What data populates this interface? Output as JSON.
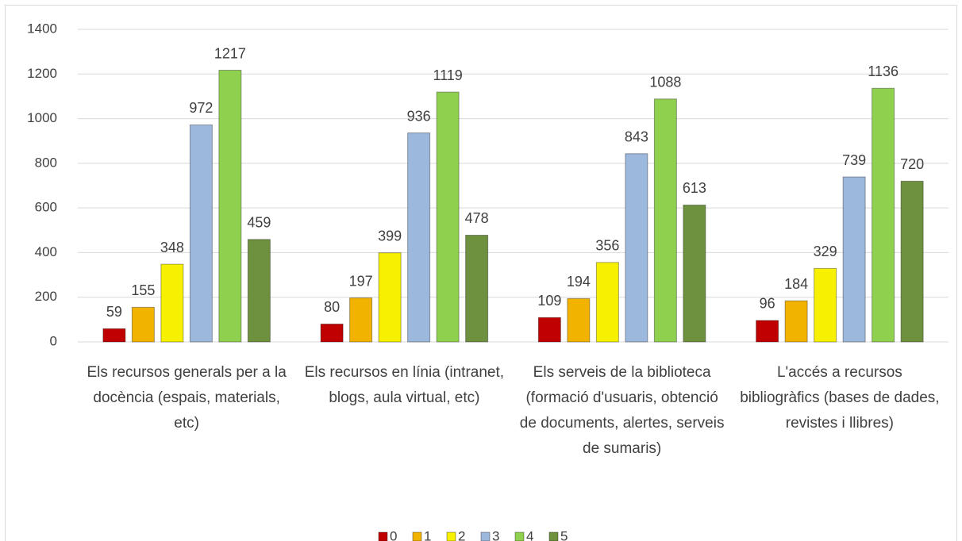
{
  "chart_data": {
    "type": "bar",
    "categories": [
      "Els recursos generals per a la docència (espais, materials, etc)",
      "Els recursos en línia (intranet, blogs, aula virtual, etc)",
      "Els serveis de la biblioteca (formació d'usuaris, obtenció de documents, alertes, serveis de sumaris)",
      "L'accés a recursos bibliogràfics (bases de dades, revistes i llibres)"
    ],
    "series": [
      {
        "name": "0",
        "color": "#c00000",
        "values": [
          59,
          80,
          109,
          96
        ]
      },
      {
        "name": "1",
        "color": "#f2b300",
        "values": [
          155,
          197,
          194,
          184
        ]
      },
      {
        "name": "2",
        "color": "#f7f000",
        "values": [
          348,
          399,
          356,
          329
        ]
      },
      {
        "name": "3",
        "color": "#9db8dd",
        "values": [
          972,
          936,
          843,
          739
        ]
      },
      {
        "name": "4",
        "color": "#8fd14f",
        "values": [
          1217,
          1119,
          1088,
          1136
        ]
      },
      {
        "name": "5",
        "color": "#6e9140",
        "values": [
          459,
          478,
          613,
          720
        ]
      }
    ],
    "ylim": [
      0,
      1400
    ],
    "yticks": [
      0,
      200,
      400,
      600,
      800,
      1000,
      1200,
      1400
    ],
    "grid": true,
    "legend": "bottom"
  }
}
